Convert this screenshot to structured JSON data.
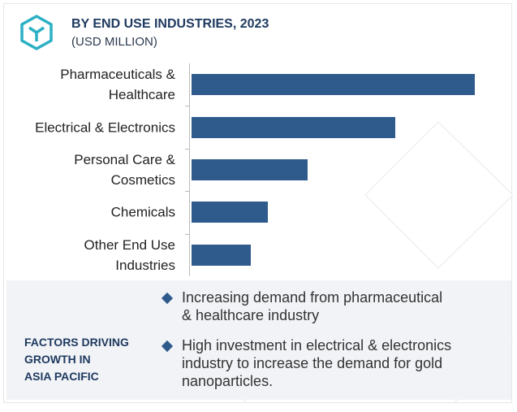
{
  "chart_data": {
    "type": "bar",
    "orientation": "horizontal",
    "title": "BY END USE INDUSTRIES, 2023",
    "subtitle": "(USD MILLION)",
    "categories": [
      "Pharmaceuticals &\nHealthcare",
      "Electrical & Electronics",
      "Personal Care &\nCosmetics",
      "Chemicals",
      "Other End Use\nIndustries"
    ],
    "values": [
      100,
      72,
      41,
      27,
      21
    ],
    "color": "#2e5a8c",
    "xlim": [
      0,
      100
    ]
  },
  "factors": {
    "title": "FACTORS DRIVING\nGROWTH IN\nASIA PACIFIC",
    "items": [
      "Increasing demand from pharmaceutical\n& healthcare industry",
      "High investment in electrical & electronics\nindustry to increase the demand for gold\nnanoparticles."
    ]
  }
}
